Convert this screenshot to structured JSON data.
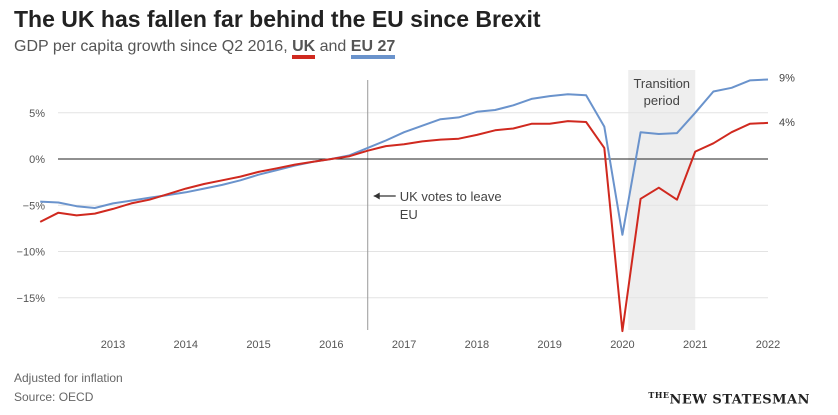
{
  "header": {
    "title": "The UK has fallen far behind the EU since Brexit",
    "subtitle_prefix": "GDP per capita growth since Q2 2016, ",
    "subtitle_uk": "UK",
    "subtitle_and": " and ",
    "subtitle_eu": "EU 27"
  },
  "footer": {
    "note": "Adjusted for inflation",
    "source": "Source: OECD",
    "logo_prefix": "THE",
    "logo_main": "NEW STATESMAN"
  },
  "colors": {
    "uk": "#d0291f",
    "eu": "#6a93cc",
    "shade": "#eeeeee",
    "grid": "#e3e3e3",
    "zero": "#222222",
    "marker": "#999999"
  },
  "chart_data": {
    "type": "line",
    "title": "The UK has fallen far behind the EU since Brexit",
    "xlim": [
      2012.25,
      2022.25
    ],
    "ylim": [
      -18.5,
      9.5
    ],
    "yticks": [
      {
        "value": 5,
        "label": "5%"
      },
      {
        "value": 0,
        "label": "0%"
      },
      {
        "value": -5,
        "label": "−5%"
      },
      {
        "value": -10,
        "label": "−10%"
      },
      {
        "value": -15,
        "label": "−15%"
      }
    ],
    "xticks": [
      {
        "value": 2013,
        "label": "2013"
      },
      {
        "value": 2014,
        "label": "2014"
      },
      {
        "value": 2015,
        "label": "2015"
      },
      {
        "value": 2016,
        "label": "2016"
      },
      {
        "value": 2017,
        "label": "2017"
      },
      {
        "value": 2018,
        "label": "2018"
      },
      {
        "value": 2019,
        "label": "2019"
      },
      {
        "value": 2020,
        "label": "2020"
      },
      {
        "value": 2021,
        "label": "2021"
      },
      {
        "value": 2022,
        "label": "2022"
      }
    ],
    "x": [
      2012.0,
      2012.25,
      2012.5,
      2012.75,
      2013.0,
      2013.25,
      2013.5,
      2013.75,
      2014.0,
      2014.25,
      2014.5,
      2014.75,
      2015.0,
      2015.25,
      2015.5,
      2015.75,
      2016.0,
      2016.25,
      2016.5,
      2016.75,
      2017.0,
      2017.25,
      2017.5,
      2017.75,
      2018.0,
      2018.25,
      2018.5,
      2018.75,
      2019.0,
      2019.25,
      2019.5,
      2019.75,
      2020.0,
      2020.25,
      2020.5,
      2020.75,
      2021.0,
      2021.25,
      2021.5,
      2021.75,
      2022.0
    ],
    "series": [
      {
        "name": "UK",
        "color": "#d0291f",
        "end_label": "4%",
        "values": [
          -6.8,
          -5.8,
          -6.1,
          -5.9,
          -5.4,
          -4.8,
          -4.4,
          -3.8,
          -3.2,
          -2.7,
          -2.3,
          -1.9,
          -1.4,
          -1.0,
          -0.6,
          -0.3,
          0.0,
          0.3,
          0.9,
          1.4,
          1.6,
          1.9,
          2.1,
          2.2,
          2.6,
          3.1,
          3.3,
          3.8,
          3.8,
          4.1,
          4.0,
          1.2,
          -18.6,
          -4.3,
          -3.1,
          -4.4,
          0.8,
          1.7,
          2.9,
          3.8,
          3.9
        ]
      },
      {
        "name": "EU 27",
        "color": "#6a93cc",
        "end_label": "9%",
        "values": [
          -4.6,
          -4.7,
          -5.1,
          -5.3,
          -4.8,
          -4.5,
          -4.2,
          -3.9,
          -3.6,
          -3.2,
          -2.8,
          -2.3,
          -1.7,
          -1.2,
          -0.7,
          -0.3,
          0.0,
          0.4,
          1.2,
          2.0,
          2.9,
          3.6,
          4.3,
          4.5,
          5.1,
          5.3,
          5.8,
          6.5,
          6.8,
          7.0,
          6.9,
          3.5,
          -8.2,
          2.9,
          2.7,
          2.8,
          5.0,
          7.3,
          7.7,
          8.5,
          8.6
        ]
      }
    ],
    "shaded_region": {
      "from": 2020.08,
      "to": 2021.0,
      "label_line1": "Transition",
      "label_line2": "period"
    },
    "vertical_marker": {
      "x": 2016.5,
      "label_line1": "UK votes to leave",
      "label_line2": "EU"
    }
  }
}
